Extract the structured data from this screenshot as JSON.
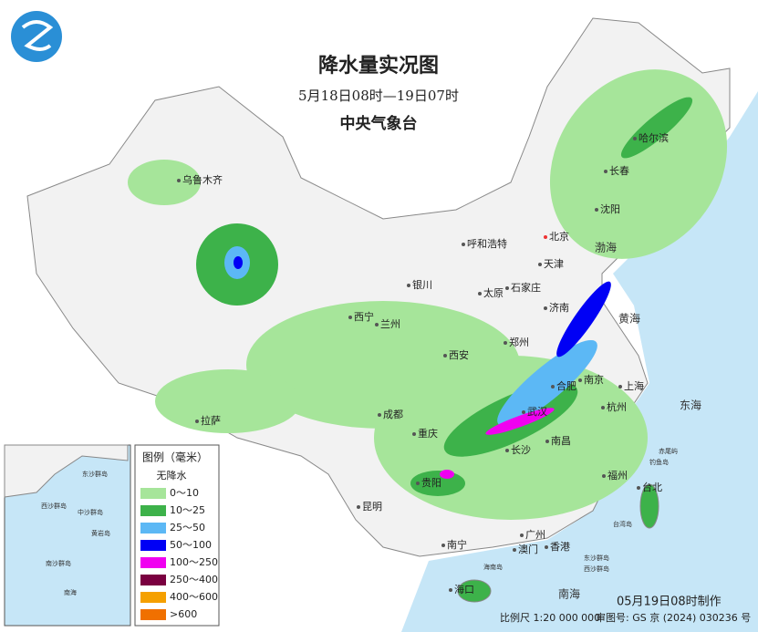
{
  "header": {
    "title": "降水量实况图",
    "subtitle": "5月18日08时—19日07时",
    "agency": "中央气象台"
  },
  "legend": {
    "title": "图例（毫米）",
    "items": [
      {
        "label": "无降水",
        "color": "#ffffff"
      },
      {
        "label": "0～10",
        "color": "#a6e59a"
      },
      {
        "label": "10～25",
        "color": "#3db24a"
      },
      {
        "label": "25～50",
        "color": "#5cb8f5"
      },
      {
        "label": "50～100",
        "color": "#0000f5"
      },
      {
        "label": "100～250",
        "color": "#f000f0"
      },
      {
        "label": "250～400",
        "color": "#7a0040"
      },
      {
        "label": "400～600",
        "color": "#f5a000"
      },
      {
        "label": ">600",
        "color": "#f07000"
      }
    ]
  },
  "cities": [
    "乌鲁木齐",
    "哈尔滨",
    "长春",
    "沈阳",
    "呼和浩特",
    "北京",
    "天津",
    "银川",
    "石家庄",
    "太原",
    "济南",
    "西宁",
    "兰州",
    "郑州",
    "西安",
    "南京",
    "合肥",
    "上海",
    "拉萨",
    "成都",
    "武汉",
    "杭州",
    "重庆",
    "长沙",
    "南昌",
    "福州",
    "台北",
    "贵阳",
    "昆明",
    "南宁",
    "广州",
    "澳门",
    "香港",
    "海口"
  ],
  "places": [
    "渤海",
    "黄海",
    "东海",
    "南海",
    "台湾岛",
    "赤尾屿",
    "钓鱼岛",
    "东沙群岛",
    "西沙群岛",
    "海南岛"
  ],
  "inset": [
    "东沙群岛",
    "西沙群岛",
    "中沙群岛",
    "南沙群岛",
    "黄岩岛",
    "南海"
  ],
  "footer": {
    "scale": "比例尺 1:20 000 000",
    "review": "审图号: GS 京 (2024) 030236 号",
    "made": "05月19日08时制作"
  }
}
